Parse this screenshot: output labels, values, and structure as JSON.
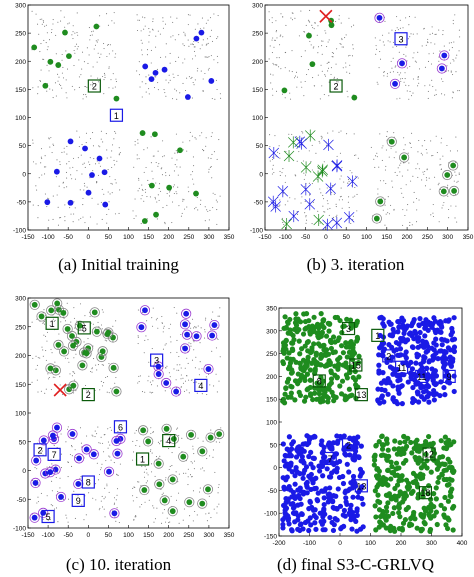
{
  "colors": {
    "green": "#1f8c1f",
    "blue": "#1a1ae6",
    "red": "#e02020",
    "grey": "#9a9a9a",
    "dark": "#555555"
  },
  "panels": [
    {
      "caption": "(a)  Initial training",
      "y_ticks": [
        "300",
        "250",
        "200",
        "150",
        "100",
        "50",
        "0",
        "-50",
        "-100"
      ],
      "x_ticks": [
        "-150",
        "-100",
        "-50",
        "0",
        "50",
        "100",
        "150",
        "200",
        "250",
        "300",
        "350"
      ],
      "labels": [
        "2",
        "1"
      ]
    },
    {
      "caption": "(b)  3. iteration",
      "y_ticks": [
        "300",
        "250",
        "200",
        "150",
        "100",
        "50",
        "0",
        "-50",
        "-100"
      ],
      "x_ticks": [
        "-150",
        "-100",
        "-50",
        "0",
        "50",
        "100",
        "150",
        "200",
        "250",
        "300",
        "350"
      ],
      "labels": [
        "2",
        "3"
      ]
    },
    {
      "caption": "(c)  10. iteration",
      "y_ticks": [
        "300",
        "250",
        "200",
        "150",
        "100",
        "50",
        "0",
        "-50",
        "-100"
      ],
      "x_ticks": [
        "-150",
        "-100",
        "-50",
        "0",
        "50",
        "100",
        "150",
        "200",
        "250",
        "300",
        "350"
      ],
      "labels": [
        "1",
        "5",
        "2",
        "3",
        "4",
        "6",
        "1",
        "2",
        "7",
        "8",
        "9",
        "5",
        "4"
      ]
    },
    {
      "caption": "(d)  final S3-C-GRLVQ",
      "y_ticks": [
        "350",
        "300",
        "250",
        "200",
        "150",
        "100",
        "50",
        "0",
        "-50",
        "-100",
        "-150"
      ],
      "x_ticks": [
        "-200",
        "-100",
        "0",
        "100",
        "200",
        "300",
        "400"
      ],
      "labels": [
        "3",
        "1",
        "8",
        "15",
        "13",
        "2",
        "11",
        "9",
        "11",
        "2",
        "7",
        "13",
        "12",
        "18"
      ]
    }
  ]
}
